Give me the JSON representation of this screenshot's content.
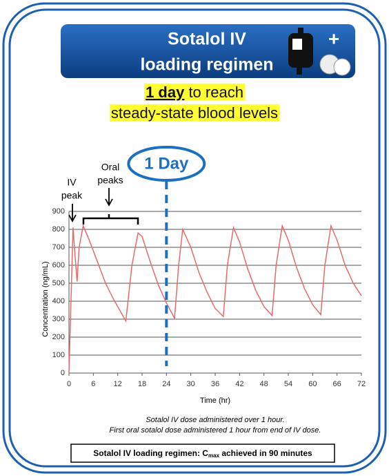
{
  "header": {
    "title_lines": [
      "Sotalol IV",
      "loading regimen"
    ]
  },
  "headline": {
    "emphasis": "1 day",
    "rest": " to reach",
    "line2": "steady-state blood levels"
  },
  "chart_data": {
    "type": "line",
    "x_label": "Time (hr)",
    "y_label": "Concentration (ng/mL)",
    "xlim": [
      0,
      72
    ],
    "ylim": [
      0,
      900
    ],
    "xticks": [
      0,
      6,
      12,
      18,
      24,
      30,
      36,
      42,
      48,
      54,
      60,
      66,
      72
    ],
    "yticks": [
      0,
      100,
      200,
      300,
      400,
      500,
      600,
      700,
      800,
      900
    ],
    "grid": true,
    "series": [
      {
        "name": "Concentration",
        "color": "#e8696b",
        "x": [
          0,
          1,
          1.5,
          2,
          2.5,
          3.5,
          5,
          7,
          9,
          11,
          13,
          14,
          15.5,
          17,
          18,
          20,
          22,
          24,
          26,
          27,
          28,
          30,
          32,
          34,
          36,
          38,
          39,
          40.5,
          42,
          44,
          46,
          48,
          50,
          51,
          52.5,
          54,
          56,
          58,
          60,
          62,
          63,
          64.5,
          66,
          68,
          70,
          72
        ],
        "values": [
          0,
          810,
          650,
          510,
          700,
          820,
          740,
          620,
          500,
          410,
          330,
          290,
          600,
          780,
          760,
          620,
          490,
          390,
          305,
          600,
          800,
          700,
          560,
          450,
          360,
          315,
          600,
          810,
          730,
          580,
          460,
          370,
          320,
          600,
          820,
          740,
          590,
          470,
          380,
          325,
          600,
          820,
          740,
          600,
          500,
          430
        ]
      }
    ],
    "annotations": {
      "iv_peak": [
        "IV",
        "peak"
      ],
      "oral_peaks": [
        "Oral",
        "peaks"
      ],
      "day_marker": {
        "label": "1 Day",
        "x": 24
      }
    }
  },
  "footnotes": [
    "Sotalol IV dose administered over 1 hour.",
    "First oral sotalol dose administered 1 hour from end of IV dose."
  ],
  "summary": {
    "text": "Sotalol IV loading regimen: C",
    "subscript": "max",
    "rest": " achieved in 90 minutes"
  }
}
